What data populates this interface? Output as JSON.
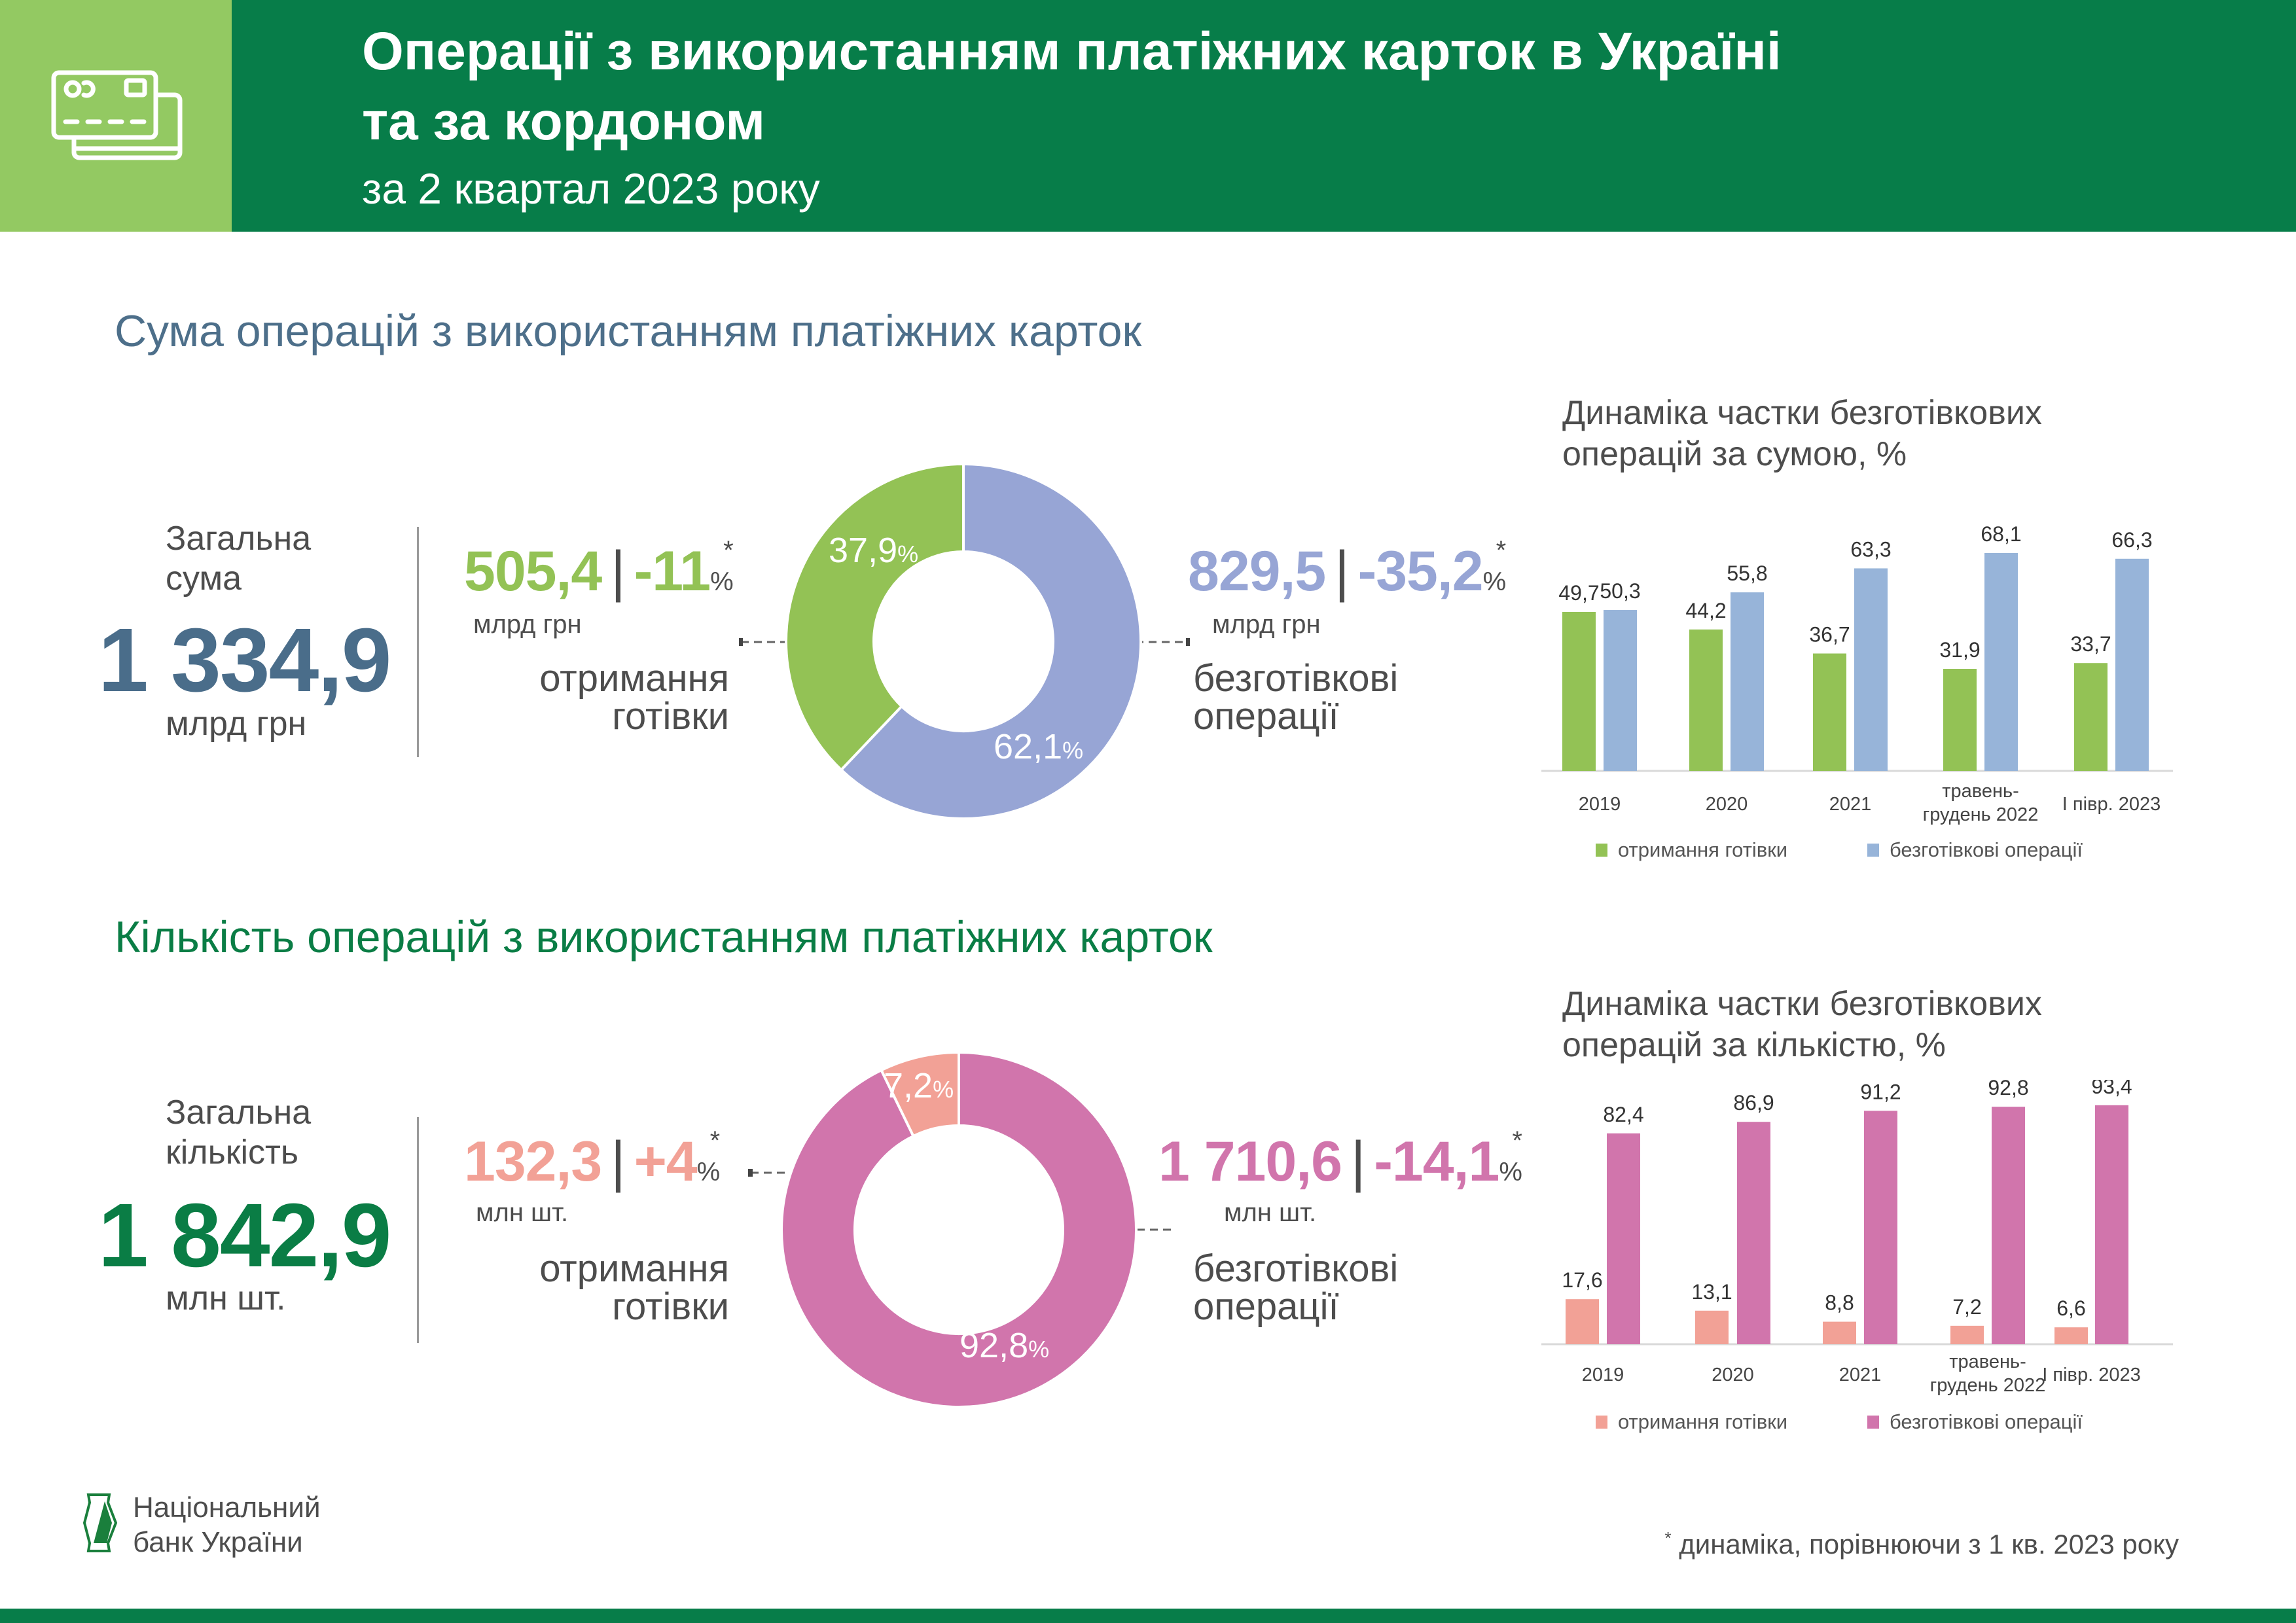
{
  "header": {
    "title_line1": "Операції з використанням платіжних карток в Україні",
    "title_line2": "та за кордоном",
    "subtitle": "за 2 квартал 2023 року",
    "icon": "credit-cards-icon",
    "colors": {
      "accent_light": "#93c962",
      "accent_dark": "#077d49"
    }
  },
  "sum": {
    "heading": "Сума операцій з використанням платіжних карток",
    "heading_color": "#4d6f8a",
    "total_label_line1": "Загальна",
    "total_label_line2": "сума",
    "total_value": "1 334,9",
    "total_unit": "млрд грн",
    "cash": {
      "value": "505,4",
      "sep": "|",
      "change": "-11",
      "pct": "%",
      "star": "*",
      "unit": "млрд грн",
      "label_line1": "отримання",
      "label_line2": "готівки",
      "color": "#93c255"
    },
    "cashless": {
      "value": "829,5",
      "sep": "|",
      "change": "-35,2",
      "pct": "%",
      "star": "*",
      "unit": "млрд грн",
      "label_line1": "безготівкові",
      "label_line2": "операції",
      "color": "#97a5d5"
    }
  },
  "count": {
    "heading": "Кількість операцій з використанням платіжних карток",
    "heading_color": "#0a7d45",
    "total_label_line1": "Загальна",
    "total_label_line2": "кількість",
    "total_value": "1 842,9",
    "total_unit": "млн шт.",
    "cash": {
      "value": "132,3",
      "sep": "|",
      "change": "+4",
      "pct": "%",
      "star": "*",
      "unit": "млн шт.",
      "label_line1": "отримання",
      "label_line2": "готівки",
      "color": "#f2a196"
    },
    "cashless": {
      "value": "1 710,6",
      "sep": "|",
      "change": "-14,1",
      "pct": "%",
      "star": "*",
      "unit": "млн шт.",
      "label_line1": "безготівкові",
      "label_line2": "операції",
      "color": "#d175ac"
    }
  },
  "logo": {
    "line1": "Національний",
    "line2": "банк України"
  },
  "footnote": {
    "star": "*",
    "text": "динаміка, порівнюючи з 1 кв. 2023 року"
  },
  "chart_data": [
    {
      "type": "pie",
      "categories": [
        "отримання готівки",
        "безготівкові операції"
      ],
      "values": [
        37.9,
        62.1
      ],
      "labels": [
        "37,9",
        "62,1"
      ],
      "unit": "%",
      "colors": [
        "#93c255",
        "#97a5d5"
      ]
    },
    {
      "type": "bar",
      "title": "Динаміка частки безготівкових операцій за сумою, %",
      "categories": [
        "2019",
        "2020",
        "2021",
        "травень-грудень 2022",
        "І півр. 2023"
      ],
      "series": [
        {
          "name": "отримання готівки",
          "values": [
            49.7,
            44.2,
            36.7,
            31.9,
            33.7
          ],
          "color": "#93c255"
        },
        {
          "name": "безготівкові операції",
          "values": [
            50.3,
            55.8,
            63.3,
            68.1,
            66.3
          ],
          "color": "#97b4d9"
        }
      ],
      "legend": "bottom",
      "grid": false
    },
    {
      "type": "pie",
      "categories": [
        "отримання готівки",
        "безготівкові операції"
      ],
      "values": [
        7.2,
        92.8
      ],
      "labels": [
        "7,2",
        "92,8"
      ],
      "unit": "%",
      "colors": [
        "#f2a196",
        "#d175ac"
      ]
    },
    {
      "type": "bar",
      "title": "Динаміка частки безготівкових операцій за кількістю, %",
      "categories": [
        "2019",
        "2020",
        "2021",
        "травень-грудень 2022",
        "І півр. 2023"
      ],
      "series": [
        {
          "name": "отримання готівки",
          "values": [
            17.6,
            13.1,
            8.8,
            7.2,
            6.6
          ],
          "color": "#f2a196"
        },
        {
          "name": "безготівкові операції",
          "values": [
            82.4,
            86.9,
            91.2,
            92.8,
            93.4
          ],
          "color": "#d175ac"
        }
      ],
      "legend": "bottom",
      "grid": false
    }
  ]
}
